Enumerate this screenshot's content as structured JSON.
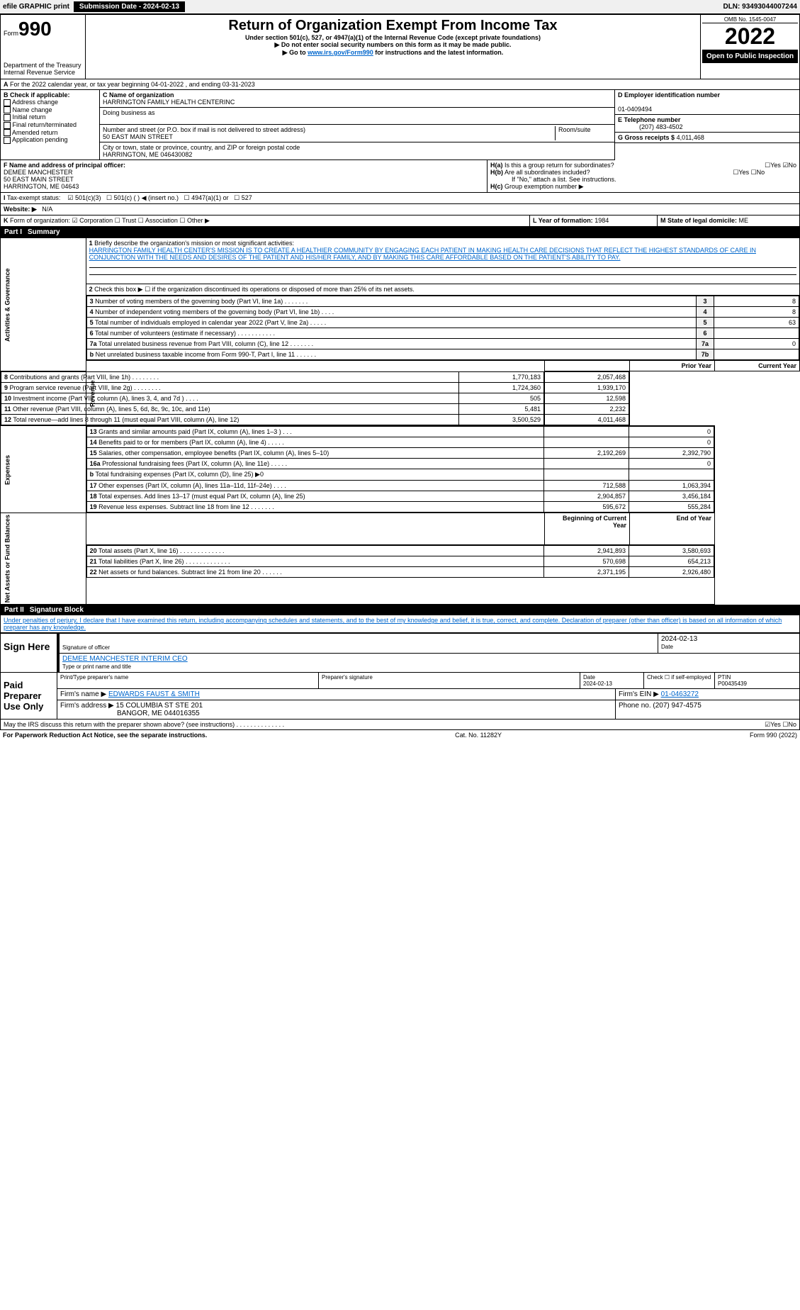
{
  "topbar": {
    "efile": "efile GRAPHIC print",
    "sub_label": "Submission Date - 2024-02-13",
    "dln": "DLN: 93493044007244"
  },
  "header": {
    "form_prefix": "Form",
    "form_no": "990",
    "dept": "Department of the Treasury",
    "irs": "Internal Revenue Service",
    "title": "Return of Organization Exempt From Income Tax",
    "sub1": "Under section 501(c), 527, or 4947(a)(1) of the Internal Revenue Code (except private foundations)",
    "sub2": "▶ Do not enter social security numbers on this form as it may be made public.",
    "sub3_pre": "▶ Go to ",
    "sub3_link": "www.irs.gov/Form990",
    "sub3_post": " for instructions and the latest information.",
    "omb": "OMB No. 1545-0047",
    "year": "2022",
    "open": "Open to Public Inspection"
  },
  "period": "For the 2022 calendar year, or tax year beginning 04-01-2022    , and ending 03-31-2023",
  "checkboxes": {
    "b_label": "B Check if applicable:",
    "items": [
      "Address change",
      "Name change",
      "Initial return",
      "Final return/terminated",
      "Amended return",
      "Application pending"
    ]
  },
  "org": {
    "c_label": "C Name of organization",
    "name": "HARRINGTON FAMILY HEALTH CENTERINC",
    "dba_label": "Doing business as",
    "street_label": "Number and street (or P.O. box if mail is not delivered to street address)",
    "room_label": "Room/suite",
    "street": "50 EAST MAIN STREET",
    "city_label": "City or town, state or province, country, and ZIP or foreign postal code",
    "city": "HARRINGTON, ME  046430082",
    "d_label": "D Employer identification number",
    "ein": "01-0409494",
    "e_label": "E Telephone number",
    "phone": "(207) 483-4502",
    "g_label": "G Gross receipts $",
    "gross": "4,011,468"
  },
  "officer": {
    "f_label": "F Name and address of principal officer:",
    "name": "DEMEE MANCHESTER",
    "street": "50 EAST MAIN STREET",
    "city": "HARRINGTON, ME  04643"
  },
  "h": {
    "a": "Is this a group return for subordinates?",
    "b": "Are all subordinates included?",
    "b2": "If \"No,\" attach a list. See instructions.",
    "c": "Group exemption number ▶"
  },
  "taxstatus": {
    "i_label": "Tax-exempt status:",
    "opts": [
      "501(c)(3)",
      "501(c) (  ) ◀ (insert no.)",
      "4947(a)(1) or",
      "527"
    ]
  },
  "website": {
    "j": "Website: ▶",
    "val": "N/A"
  },
  "k_label": "Form of organization:",
  "k_opts": [
    "Corporation",
    "Trust",
    "Association",
    "Other ▶"
  ],
  "l_label": "L Year of formation:",
  "l_val": "1984",
  "m_label": "M State of legal domicile:",
  "m_val": "ME",
  "part1": {
    "title": "Part I",
    "name": "Summary",
    "side_act": "Activities & Governance",
    "side_rev": "Revenue",
    "side_exp": "Expenses",
    "side_net": "Net Assets or Fund Balances"
  },
  "summary": {
    "l1": "Briefly describe the organization's mission or most significant activities:",
    "mission": "HARRINGTON FAMILY HEALTH CENTER'S MISSION IS TO CREATE A HEALTHIER COMMUNITY BY ENGAGING EACH PATIENT IN MAKING HEALTH CARE DECISIONS THAT REFLECT THE HIGHEST STANDARDS OF CARE IN CONJUNCTION WITH THE NEEDS AND DESIRES OF THE PATIENT AND HIS/HER FAMILY, AND BY MAKING THIS CARE AFFORDABLE BASED ON THE PATIENT'S ABILITY TO PAY.",
    "l2": "Check this box ▶ ☐ if the organization discontinued its operations or disposed of more than 25% of its net assets.",
    "rows_gov": [
      {
        "n": "3",
        "t": "Number of voting members of the governing body (Part VI, line 1a)   .    .    .    .    .    .    .",
        "box": "3",
        "v": "8"
      },
      {
        "n": "4",
        "t": "Number of independent voting members of the governing body (Part VI, line 1b)   .    .    .    .",
        "box": "4",
        "v": "8"
      },
      {
        "n": "5",
        "t": "Total number of individuals employed in calendar year 2022 (Part V, line 2a)   .    .    .    .    .",
        "box": "5",
        "v": "63"
      },
      {
        "n": "6",
        "t": "Total number of volunteers (estimate if necessary)   .    .    .    .    .    .    .    .    .    .    .",
        "box": "6",
        "v": ""
      },
      {
        "n": "7a",
        "t": "Total unrelated business revenue from Part VIII, column (C), line 12   .    .    .    .    .    .    .",
        "box": "7a",
        "v": "0"
      },
      {
        "n": "b",
        "t": "Net unrelated business taxable income from Form 990-T, Part I, line 11   .    .    .    .    .    .",
        "box": "7b",
        "v": ""
      }
    ],
    "prior": "Prior Year",
    "current": "Current Year",
    "rows_rev": [
      {
        "n": "8",
        "t": "Contributions and grants (Part VIII, line 1h)   .    .    .    .    .    .    .    .",
        "p": "1,770,183",
        "c": "2,057,468"
      },
      {
        "n": "9",
        "t": "Program service revenue (Part VIII, line 2g)   .    .    .    .    .    .    .    .",
        "p": "1,724,360",
        "c": "1,939,170"
      },
      {
        "n": "10",
        "t": "Investment income (Part VIII, column (A), lines 3, 4, and 7d )   .    .    .    .",
        "p": "505",
        "c": "12,598"
      },
      {
        "n": "11",
        "t": "Other revenue (Part VIII, column (A), lines 5, 6d, 8c, 9c, 10c, and 11e)",
        "p": "5,481",
        "c": "2,232"
      },
      {
        "n": "12",
        "t": "Total revenue—add lines 8 through 11 (must equal Part VIII, column (A), line 12)",
        "p": "3,500,529",
        "c": "4,011,468"
      }
    ],
    "rows_exp": [
      {
        "n": "13",
        "t": "Grants and similar amounts paid (Part IX, column (A), lines 1–3 )   .    .    .",
        "p": "",
        "c": "0"
      },
      {
        "n": "14",
        "t": "Benefits paid to or for members (Part IX, column (A), line 4)   .    .    .    .    .",
        "p": "",
        "c": "0"
      },
      {
        "n": "15",
        "t": "Salaries, other compensation, employee benefits (Part IX, column (A), lines 5–10)",
        "p": "2,192,269",
        "c": "2,392,790"
      },
      {
        "n": "16a",
        "t": "Professional fundraising fees (Part IX, column (A), line 11e)   .    .    .    .    .",
        "p": "",
        "c": "0"
      },
      {
        "n": "b",
        "t": "Total fundraising expenses (Part IX, column (D), line 25) ▶0",
        "p": "",
        "c": ""
      },
      {
        "n": "17",
        "t": "Other expenses (Part IX, column (A), lines 11a–11d, 11f–24e)   .    .    .    .",
        "p": "712,588",
        "c": "1,063,394"
      },
      {
        "n": "18",
        "t": "Total expenses. Add lines 13–17 (must equal Part IX, column (A), line 25)",
        "p": "2,904,857",
        "c": "3,456,184"
      },
      {
        "n": "19",
        "t": "Revenue less expenses. Subtract line 18 from line 12   .    .    .    .    .    .    .",
        "p": "595,672",
        "c": "555,284"
      }
    ],
    "begin": "Beginning of Current Year",
    "end": "End of Year",
    "rows_net": [
      {
        "n": "20",
        "t": "Total assets (Part X, line 16)   .    .    .    .    .    .    .    .    .    .    .    .    .",
        "p": "2,941,893",
        "c": "3,580,693"
      },
      {
        "n": "21",
        "t": "Total liabilities (Part X, line 26)   .    .    .    .    .    .    .    .    .    .    .    .    .",
        "p": "570,698",
        "c": "654,213"
      },
      {
        "n": "22",
        "t": "Net assets or fund balances. Subtract line 21 from line 20   .    .    .    .    .    .",
        "p": "2,371,195",
        "c": "2,926,480"
      }
    ]
  },
  "part2": {
    "title": "Part II",
    "name": "Signature Block",
    "decl": "Under penalties of perjury, I declare that I have examined this return, including accompanying schedules and statements, and to the best of my knowledge and belief, it is true, correct, and complete. Declaration of preparer (other than officer) is based on all information of which preparer has any knowledge."
  },
  "sign": {
    "here": "Sign Here",
    "sig_officer": "Signature of officer",
    "date": "2024-02-13",
    "date_label": "Date",
    "name": "DEMEE MANCHESTER  INTERIM CEO",
    "name_label": "Type or print name and title"
  },
  "paid": {
    "label": "Paid Preparer Use Only",
    "cols": [
      "Print/Type preparer's name",
      "Preparer's signature",
      "Date",
      "Check ☐ if self-employed",
      "PTIN"
    ],
    "date": "2024-02-13",
    "ptin": "P00435439",
    "firm_label": "Firm's name   ▶",
    "firm": "EDWARDS FAUST & SMITH",
    "ein_label": "Firm's EIN ▶",
    "ein": "01-0463272",
    "addr_label": "Firm's address ▶",
    "addr1": "15 COLUMBIA ST STE 201",
    "addr2": "BANGOR, ME  044016355",
    "phone_label": "Phone no.",
    "phone": "(207) 947-4575"
  },
  "discuss": "May the IRS discuss this return with the preparer shown above? (see instructions)   .    .    .    .    .    .    .    .    .    .    .    .    .    .",
  "footer": {
    "pra": "For Paperwork Reduction Act Notice, see the separate instructions.",
    "cat": "Cat. No. 11282Y",
    "form": "Form 990 (2022)"
  }
}
